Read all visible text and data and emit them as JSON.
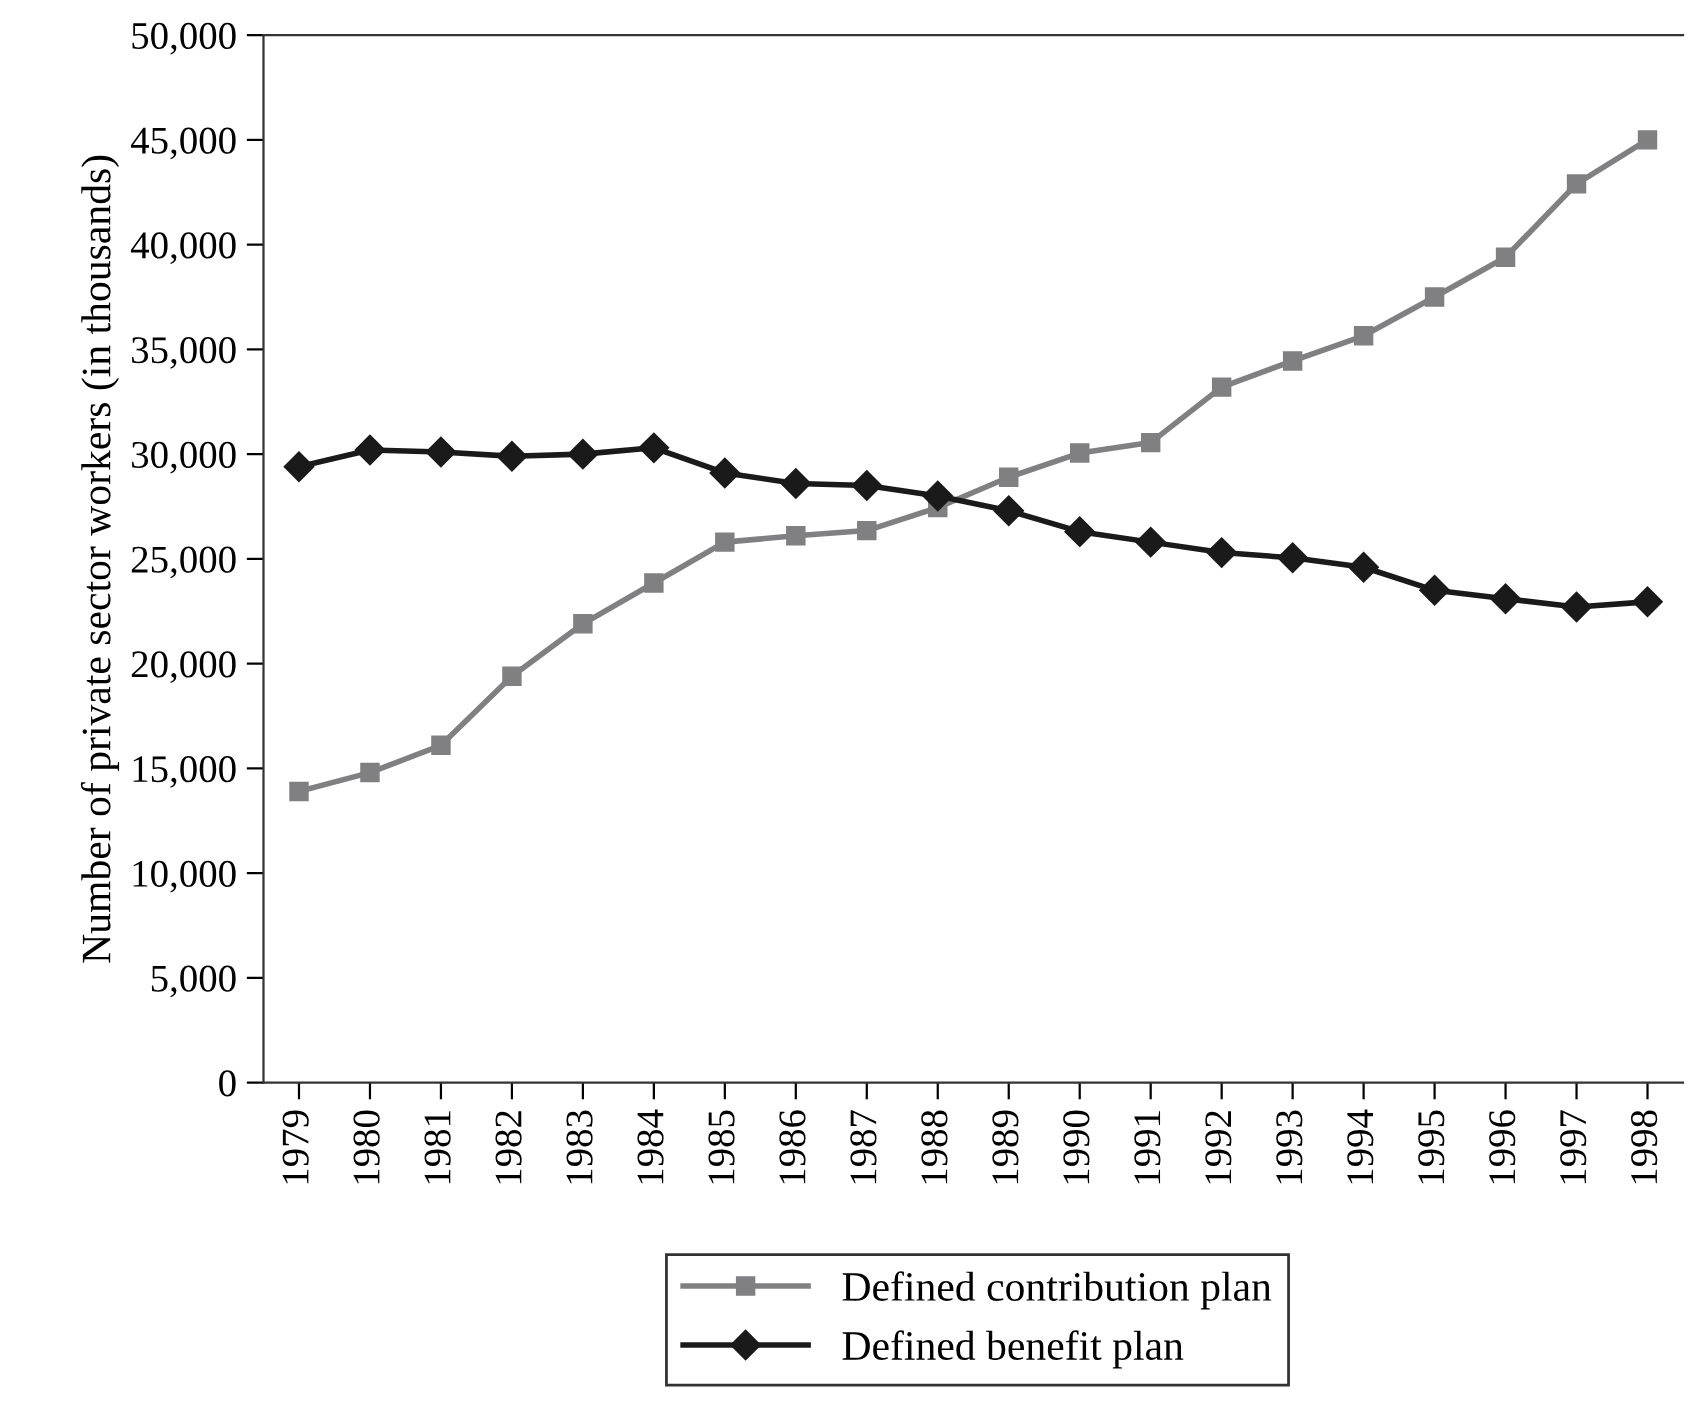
{
  "chart_data": {
    "type": "line",
    "ylabel": "Number of private sector workers (in thousands)",
    "categories": [
      "1979",
      "1980",
      "1981",
      "1982",
      "1983",
      "1984",
      "1985",
      "1986",
      "1987",
      "1988",
      "1989",
      "1990",
      "1991",
      "1992",
      "1993",
      "1994",
      "1995",
      "1996",
      "1997",
      "1998"
    ],
    "series": [
      {
        "name": "Defined contribution plan",
        "color": "#808083",
        "marker": "square",
        "values": [
          13900,
          14800,
          16100,
          19400,
          21900,
          23850,
          25800,
          26100,
          26350,
          27450,
          28900,
          30050,
          30550,
          33200,
          34450,
          35650,
          37500,
          39400,
          42900,
          45000
        ]
      },
      {
        "name": "Defined benefit plan",
        "color": "#1a1a1a",
        "marker": "diamond",
        "values": [
          29400,
          30200,
          30100,
          29900,
          30000,
          30300,
          29100,
          28600,
          28500,
          28000,
          27300,
          26300,
          25800,
          25300,
          25050,
          24600,
          23500,
          23100,
          22700,
          22950
        ]
      }
    ],
    "ylim": [
      0,
      50000
    ],
    "yticks": [
      {
        "value": 0,
        "label": "0"
      },
      {
        "value": 5000,
        "label": "5,000"
      },
      {
        "value": 10000,
        "label": "10,000"
      },
      {
        "value": 15000,
        "label": "15,000"
      },
      {
        "value": 20000,
        "label": "20,000"
      },
      {
        "value": 25000,
        "label": "25,000"
      },
      {
        "value": 30000,
        "label": "30,000"
      },
      {
        "value": 35000,
        "label": "35,000"
      },
      {
        "value": 40000,
        "label": "40,000"
      },
      {
        "value": 45000,
        "label": "45,000"
      },
      {
        "value": 50000,
        "label": "50,000"
      }
    ],
    "grid": false,
    "legend": "bottom",
    "line_style": "solid"
  }
}
